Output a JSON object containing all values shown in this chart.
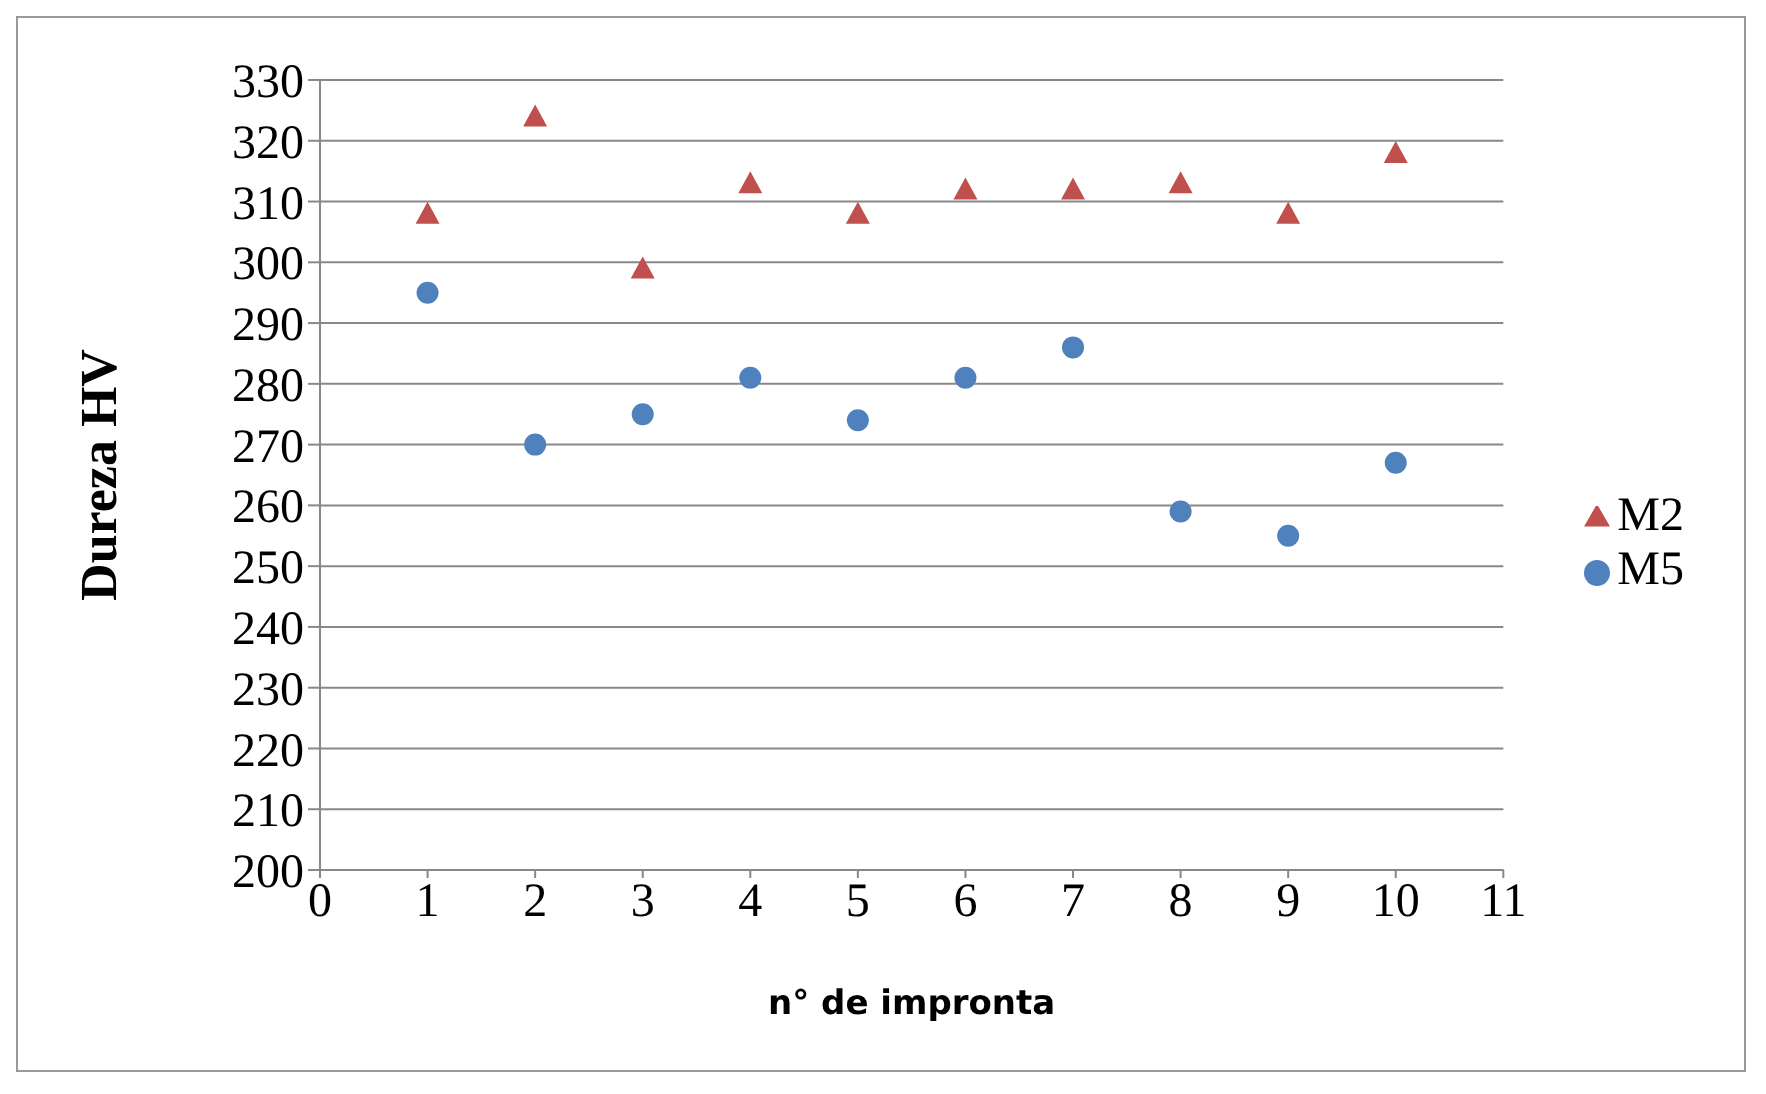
{
  "chart_data": {
    "type": "scatter",
    "xlabel": "n° de impronta",
    "ylabel": "Dureza HV",
    "x": [
      1,
      2,
      3,
      4,
      5,
      6,
      7,
      8,
      9,
      10
    ],
    "series": [
      {
        "name": "M5",
        "color": "#4f81bd",
        "marker": "circle",
        "values": [
          295,
          270,
          275,
          281,
          274,
          281,
          286,
          259,
          255,
          267
        ]
      },
      {
        "name": "M2",
        "color": "#c0504d",
        "marker": "triangle",
        "values": [
          308,
          324,
          299,
          313,
          308,
          312,
          312,
          313,
          308,
          318
        ]
      }
    ],
    "xlim": [
      0,
      11
    ],
    "xticks": [
      0,
      1,
      2,
      3,
      4,
      5,
      6,
      7,
      8,
      9,
      10,
      11
    ],
    "ylim": [
      200,
      330
    ],
    "yticks": [
      200,
      210,
      220,
      230,
      240,
      250,
      260,
      270,
      280,
      290,
      300,
      310,
      320,
      330
    ],
    "grid": "y",
    "legend": "right"
  }
}
